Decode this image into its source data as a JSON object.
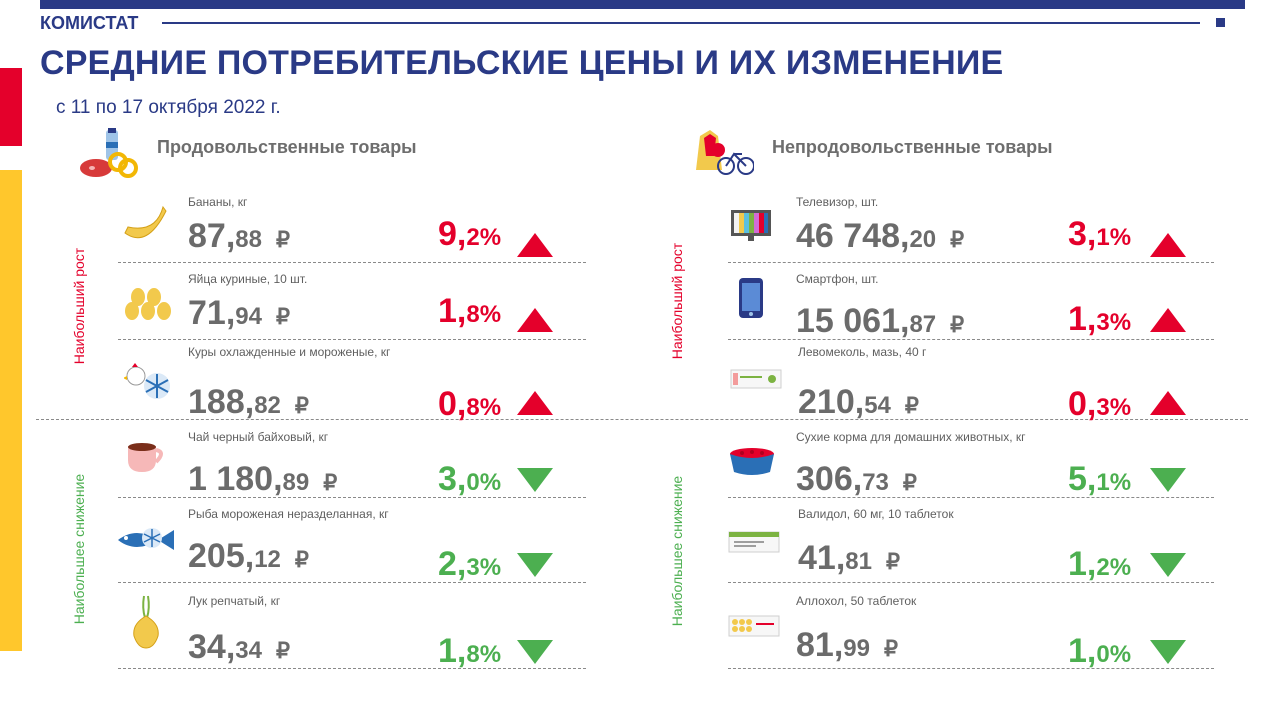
{
  "header": {
    "brand": "КОМИСТАТ",
    "title": "СРЕДНИЕ ПОТРЕБИТЕЛЬСКИЕ ЦЕНЫ И ИХ ИЗМЕНЕНИЕ",
    "period": "с 11 по 17 октября 2022 г."
  },
  "colors": {
    "brand": "#2a3a86",
    "rise": "#e4002b",
    "fall": "#4caf50",
    "accent_yellow": "#ffc72c"
  },
  "labels": {
    "rise": "Наибольший рост",
    "fall": "Наибольшее снижение"
  },
  "food": {
    "title": "Продовольственные товары",
    "icon": "groceries-icon",
    "items": [
      {
        "name": "Бананы, кг",
        "price_int": "87,",
        "price_dec": "88",
        "currency": "₽",
        "pct_int": "9,",
        "pct_dec": "2%",
        "direction": "up",
        "icon": "banana-icon"
      },
      {
        "name": "Яйца куриные, 10 шт.",
        "price_int": "71,",
        "price_dec": "94",
        "currency": "₽",
        "pct_int": "1,",
        "pct_dec": "8%",
        "direction": "up",
        "icon": "eggs-icon"
      },
      {
        "name": "Куры охлажденные  и мороженые, кг",
        "price_int": "188,",
        "price_dec": "82",
        "currency": "₽",
        "pct_int": "0,",
        "pct_dec": "8%",
        "direction": "up",
        "icon": "frozen-chicken-icon"
      },
      {
        "name": "Чай черный  байховый, кг",
        "price_int": "1 180,",
        "price_dec": "89",
        "currency": "₽",
        "pct_int": "3,",
        "pct_dec": "0%",
        "direction": "down",
        "icon": "tea-cup-icon"
      },
      {
        "name": "Рыба мороженая неразделанная,  кг",
        "price_int": "205,",
        "price_dec": "12",
        "currency": "₽",
        "pct_int": "2,",
        "pct_dec": "3%",
        "direction": "down",
        "icon": "frozen-fish-icon"
      },
      {
        "name": "Лук репчатый,  кг",
        "price_int": "34,",
        "price_dec": "34",
        "currency": "₽",
        "pct_int": "1,",
        "pct_dec": "8%",
        "direction": "down",
        "icon": "onion-icon"
      }
    ]
  },
  "nonfood": {
    "title": "Непродовольственные товары",
    "icon": "clothes-bicycle-icon",
    "items": [
      {
        "name": "Телевизор,  шт.",
        "price_int": "46 748,",
        "price_dec": "20",
        "currency": "₽",
        "pct_int": "3,",
        "pct_dec": "1%",
        "direction": "up",
        "icon": "tv-icon"
      },
      {
        "name": "Смартфон,  шт.",
        "price_int": "15 061,",
        "price_dec": "87",
        "currency": "₽",
        "pct_int": "1,",
        "pct_dec": "3%",
        "direction": "up",
        "icon": "smartphone-icon"
      },
      {
        "name": "Левомеколь, мазь, 40 г",
        "price_int": "210,",
        "price_dec": "54",
        "currency": "₽",
        "pct_int": "0,",
        "pct_dec": "3%",
        "direction": "up",
        "icon": "ointment-icon"
      },
      {
        "name": "Сухие корма для домашних животных,  кг",
        "price_int": "306,",
        "price_dec": "73",
        "currency": "₽",
        "pct_int": "5,",
        "pct_dec": "1%",
        "direction": "down",
        "icon": "pet-food-bowl-icon"
      },
      {
        "name": "Валидол,  60 мг, 10 таблеток",
        "price_int": "41,",
        "price_dec": "81",
        "currency": "₽",
        "pct_int": "1,",
        "pct_dec": "2%",
        "direction": "down",
        "icon": "pill-box-icon"
      },
      {
        "name": "Аллохол,  50 таблеток",
        "price_int": "81,",
        "price_dec": "99",
        "currency": "₽",
        "pct_int": "1,",
        "pct_dec": "0%",
        "direction": "down",
        "icon": "tablet-blister-icon"
      }
    ]
  }
}
